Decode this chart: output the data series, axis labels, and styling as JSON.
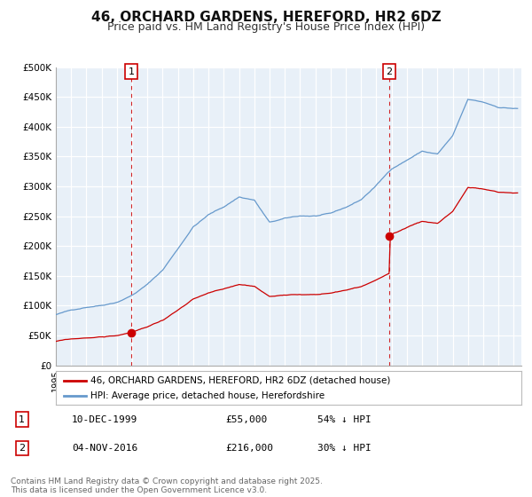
{
  "title": "46, ORCHARD GARDENS, HEREFORD, HR2 6DZ",
  "subtitle": "Price paid vs. HM Land Registry's House Price Index (HPI)",
  "title_fontsize": 11,
  "subtitle_fontsize": 9,
  "bg_color": "#e8f0f8",
  "grid_color": "#ffffff",
  "ylim": [
    0,
    500000
  ],
  "yticks": [
    0,
    50000,
    100000,
    150000,
    200000,
    250000,
    300000,
    350000,
    400000,
    450000,
    500000
  ],
  "ytick_labels": [
    "£0",
    "£50K",
    "£100K",
    "£150K",
    "£200K",
    "£250K",
    "£300K",
    "£350K",
    "£400K",
    "£450K",
    "£500K"
  ],
  "xlim_start": 1995.0,
  "xlim_end": 2025.5,
  "xtick_years": [
    1995,
    1996,
    1997,
    1998,
    1999,
    2000,
    2001,
    2002,
    2003,
    2004,
    2005,
    2006,
    2007,
    2008,
    2009,
    2010,
    2011,
    2012,
    2013,
    2014,
    2015,
    2016,
    2017,
    2018,
    2019,
    2020,
    2021,
    2022,
    2023,
    2024,
    2025
  ],
  "hpi_color": "#6699cc",
  "price_color": "#cc0000",
  "marker_color": "#cc0000",
  "vline_color": "#cc0000",
  "transaction1_x": 1999.94,
  "transaction1_y": 55000,
  "transaction1_label": "1",
  "transaction2_x": 2016.84,
  "transaction2_y": 216000,
  "transaction2_label": "2",
  "legend_line1": "46, ORCHARD GARDENS, HEREFORD, HR2 6DZ (detached house)",
  "legend_line2": "HPI: Average price, detached house, Herefordshire",
  "table_row1": [
    "1",
    "10-DEC-1999",
    "£55,000",
    "54% ↓ HPI"
  ],
  "table_row2": [
    "2",
    "04-NOV-2016",
    "£216,000",
    "30% ↓ HPI"
  ],
  "footer": "Contains HM Land Registry data © Crown copyright and database right 2025.\nThis data is licensed under the Open Government Licence v3.0.",
  "footer_fontsize": 6.5,
  "hpi_keypoints_x": [
    1995.0,
    1996.0,
    1997.0,
    1998.0,
    1999.0,
    2000.0,
    2001.0,
    2002.0,
    2003.0,
    2004.0,
    2005.0,
    2006.0,
    2007.0,
    2008.0,
    2009.0,
    2010.0,
    2011.0,
    2012.0,
    2013.0,
    2014.0,
    2015.0,
    2016.0,
    2017.0,
    2018.0,
    2019.0,
    2020.0,
    2021.0,
    2022.0,
    2023.0,
    2024.0,
    2025.25
  ],
  "hpi_keypoints_y": [
    85000,
    92000,
    98000,
    102000,
    108000,
    120000,
    138000,
    162000,
    198000,
    235000,
    255000,
    268000,
    285000,
    280000,
    242000,
    248000,
    252000,
    252000,
    255000,
    265000,
    278000,
    302000,
    330000,
    345000,
    360000,
    355000,
    385000,
    445000,
    440000,
    432000,
    430000
  ]
}
